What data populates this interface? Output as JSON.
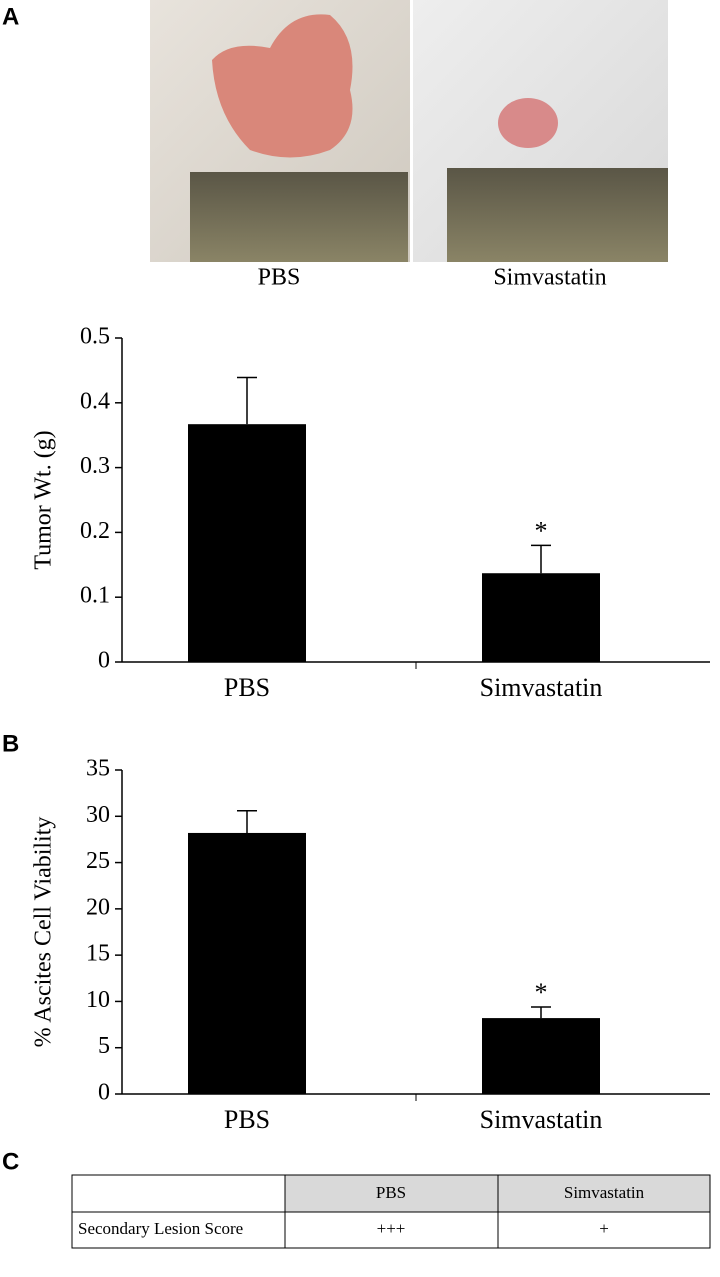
{
  "panel_labels": [
    "A",
    "B",
    "C"
  ],
  "photos": {
    "captions": [
      "PBS",
      "Simvastatin"
    ]
  },
  "chart_data": [
    {
      "type": "bar",
      "y_label": "Tumor Wt. (g)",
      "categories": [
        "PBS",
        "Simvastatin"
      ],
      "values": [
        0.367,
        0.137
      ],
      "errors": [
        0.072,
        0.043
      ],
      "significance": [
        null,
        "*"
      ],
      "color": "#000000",
      "ylim": [
        0,
        0.5
      ],
      "yticks": [
        0,
        0.1,
        0.2,
        0.3,
        0.4,
        0.5
      ]
    },
    {
      "type": "bar",
      "y_label": "% Ascites Cell Viability",
      "categories": [
        "PBS",
        "Simvastatin"
      ],
      "values": [
        28.2,
        8.2
      ],
      "errors": [
        2.4,
        1.2
      ],
      "significance": [
        null,
        "*"
      ],
      "color": "#000000",
      "ylim": [
        0,
        35
      ],
      "yticks": [
        0,
        5,
        10,
        15,
        20,
        25,
        30,
        35
      ]
    }
  ],
  "table": {
    "columns": [
      "PBS",
      "Simvastatin"
    ],
    "rows": [
      [
        "Secondary Lesion Score",
        "+++",
        "+"
      ]
    ]
  }
}
